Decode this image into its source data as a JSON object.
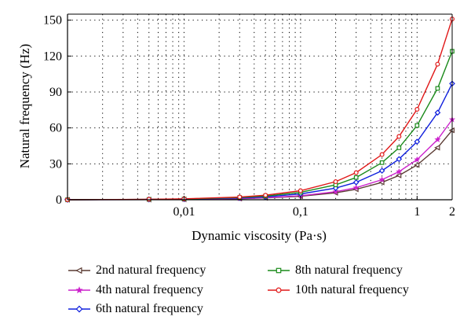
{
  "chart_data": {
    "type": "line",
    "x_scale": "log",
    "xlabel": "Dynamic viscosity (Pa·s)",
    "ylabel": "Natural frequency (Hz)",
    "xlim": [
      0.001,
      2
    ],
    "ylim": [
      0,
      155
    ],
    "grid": true,
    "grid_style": "dotted",
    "x_ticks": [
      {
        "value": 0.01,
        "label": "0,01"
      },
      {
        "value": 0.1,
        "label": "0,1"
      },
      {
        "value": 1,
        "label": "1"
      },
      {
        "value": 2,
        "label": "2"
      }
    ],
    "y_ticks": [
      {
        "value": 0,
        "label": "0"
      },
      {
        "value": 30,
        "label": "30"
      },
      {
        "value": 60,
        "label": "60"
      },
      {
        "value": 90,
        "label": "90"
      },
      {
        "value": 120,
        "label": "120"
      },
      {
        "value": 150,
        "label": "150"
      }
    ],
    "legend_position": "bottom",
    "series": [
      {
        "name": "2nd natural frequency",
        "color": "#5a3a32",
        "marker": "triangle-left",
        "x": [
          0.001,
          0.005,
          0.01,
          0.03,
          0.05,
          0.1,
          0.2,
          0.3,
          0.5,
          0.7,
          1.0,
          1.5,
          2.0
        ],
        "y": [
          0,
          0.15,
          0.3,
          0.9,
          1.5,
          2.9,
          5.8,
          8.7,
          14.5,
          20.3,
          29,
          43.5,
          58
        ]
      },
      {
        "name": "4th natural frequency",
        "color": "#cc22cc",
        "marker": "star",
        "x": [
          0.001,
          0.005,
          0.01,
          0.03,
          0.05,
          0.1,
          0.2,
          0.3,
          0.5,
          0.7,
          1.0,
          1.5,
          2.0
        ],
        "y": [
          0,
          0.17,
          0.34,
          1.0,
          1.7,
          3.35,
          6.7,
          10.05,
          16.75,
          23.45,
          33.5,
          50.25,
          67
        ]
      },
      {
        "name": "6th natural frequency",
        "color": "#1020dd",
        "marker": "diamond",
        "x": [
          0.001,
          0.005,
          0.01,
          0.03,
          0.05,
          0.1,
          0.2,
          0.3,
          0.5,
          0.7,
          1.0,
          1.5,
          2.0
        ],
        "y": [
          0,
          0.24,
          0.49,
          1.46,
          2.43,
          4.85,
          9.7,
          14.55,
          24.25,
          33.95,
          48.5,
          72.75,
          97
        ]
      },
      {
        "name": "8th natural frequency",
        "color": "#1a8a1a",
        "marker": "square",
        "x": [
          0.001,
          0.005,
          0.01,
          0.03,
          0.05,
          0.1,
          0.2,
          0.3,
          0.5,
          0.7,
          1.0,
          1.5,
          2.0
        ],
        "y": [
          0,
          0.31,
          0.62,
          1.86,
          3.1,
          6.2,
          12.4,
          18.6,
          31,
          43.4,
          62,
          93,
          124
        ]
      },
      {
        "name": "10th natural frequency",
        "color": "#e01818",
        "marker": "circle",
        "x": [
          0.001,
          0.005,
          0.01,
          0.03,
          0.05,
          0.1,
          0.2,
          0.3,
          0.5,
          0.7,
          1.0,
          1.5,
          2.0
        ],
        "y": [
          0,
          0.38,
          0.76,
          2.27,
          3.78,
          7.55,
          15.1,
          22.65,
          37.75,
          52.85,
          75.5,
          113.25,
          151
        ]
      }
    ]
  }
}
